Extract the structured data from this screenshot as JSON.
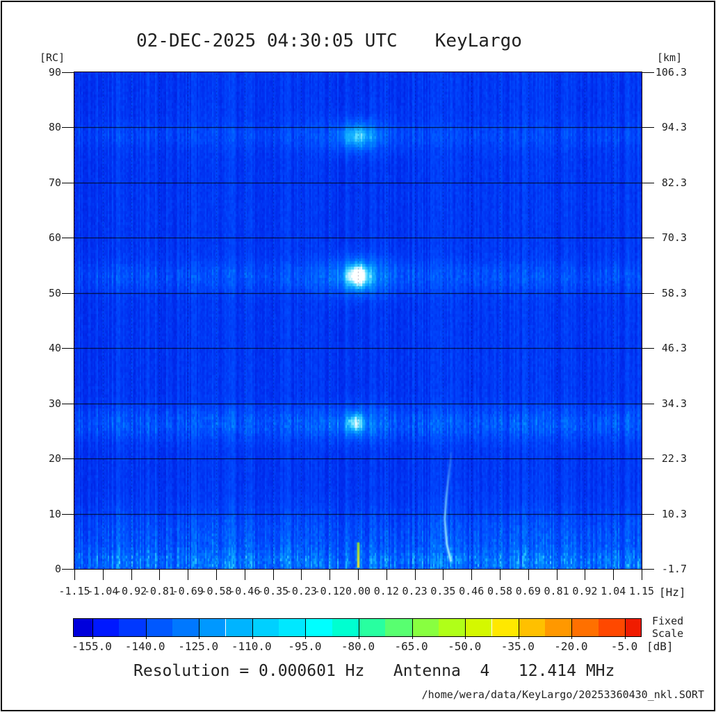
{
  "title": {
    "datetime": "02-DEC-2025 04:30:05 UTC",
    "station": "KeyLargo"
  },
  "axes": {
    "left": {
      "unit": "[RC]",
      "tick_labels": [
        "90",
        "80",
        "70",
        "60",
        "50",
        "40",
        "30",
        "20",
        "10",
        "0"
      ]
    },
    "right": {
      "unit": "[km]",
      "tick_labels": [
        "106.3",
        "94.3",
        "82.3",
        "70.3",
        "58.3",
        "46.3",
        "34.3",
        "22.3",
        "10.3",
        "-1.7"
      ]
    },
    "bottom": {
      "unit": "[Hz]",
      "tick_labels": [
        "-1.15",
        "-1.04",
        "-0.92",
        "-0.81",
        "-0.69",
        "-0.58",
        "-0.46",
        "-0.35",
        "-0.23",
        "-0.12",
        "0.00",
        "0.12",
        "0.23",
        "0.35",
        "0.46",
        "0.58",
        "0.69",
        "0.81",
        "0.92",
        "1.04",
        "1.15"
      ]
    }
  },
  "colorbar": {
    "unit": "[dB]",
    "scale_label": [
      "Fixed",
      "Scale"
    ],
    "tick_labels": [
      "-155.0",
      "-140.0",
      "-125.0",
      "-110.0",
      "-95.0",
      "-80.0",
      "-65.0",
      "-50.0",
      "-35.0",
      "-20.0",
      "-5.0"
    ],
    "segment_colors": [
      "#0000DC",
      "#0018FF",
      "#0038FF",
      "#0058FF",
      "#0078FF",
      "#0098FF",
      "#00B4FF",
      "#00D0FF",
      "#00E8FF",
      "#00FFFF",
      "#00FFD0",
      "#28FFA0",
      "#58FF70",
      "#88FF40",
      "#B0FF18",
      "#D4F800",
      "#FFE800",
      "#FFC000",
      "#FF9800",
      "#FF7000",
      "#FF4800",
      "#F01C00"
    ]
  },
  "footer": {
    "resolution_line": "Resolution = 0.000601 Hz   Antenna  4   12.414 MHz",
    "file_path": "/home/wera/data/KeyLargo/20253360430_nkl.SORT"
  },
  "chart_data": {
    "type": "heatmap",
    "title": "02-DEC-2025 04:30:05 UTC  KeyLargo",
    "xlabel": "[Hz]",
    "ylabel_left": "[RC]",
    "ylabel_right": "[km]",
    "x": {
      "min": -1.15,
      "max": 1.15,
      "ticks": [
        -1.15,
        -1.04,
        -0.92,
        -0.81,
        -0.69,
        -0.58,
        -0.46,
        -0.35,
        -0.23,
        -0.12,
        0.0,
        0.12,
        0.23,
        0.35,
        0.46,
        0.58,
        0.69,
        0.81,
        0.92,
        1.04,
        1.15
      ]
    },
    "y_left_rc": {
      "min": 0,
      "max": 90,
      "ticks": [
        90,
        80,
        70,
        60,
        50,
        40,
        30,
        20,
        10,
        0
      ]
    },
    "y_right_km": {
      "ticks": [
        106.3,
        94.3,
        82.3,
        70.3,
        58.3,
        46.3,
        34.3,
        22.3,
        10.3,
        -1.7
      ]
    },
    "value": {
      "unit": "dB",
      "min": -155.0,
      "max": -5.0,
      "scale": "Fixed Scale"
    },
    "grid": {
      "horizontal_solid_every_rc": 10,
      "vertical_dotted_at_ticks": true
    },
    "background": {
      "description": "low-level blue noise with vertical streaks",
      "base_intensity": 0.1,
      "col_streak_gain": 0.14,
      "cell_noise_gain": 0.08
    },
    "bands": [
      {
        "rc": 78.5,
        "halfwidth": 1.6,
        "amp": 0.1
      },
      {
        "rc": 53.0,
        "halfwidth": 1.9,
        "amp": 0.15
      },
      {
        "rc": 26.3,
        "halfwidth": 2.0,
        "amp": 0.2
      },
      {
        "rc": 5.0,
        "halfwidth": 4.0,
        "amp": 0.18
      },
      {
        "rc": 1.0,
        "halfwidth": 1.6,
        "amp": 0.26
      }
    ],
    "blobs": [
      {
        "hz": 0.0,
        "rc": 78.4,
        "amp": 0.38,
        "sx_hz": 0.045,
        "sy_rc": 1.5
      },
      {
        "hz": 0.0,
        "rc": 78.4,
        "amp": 0.12,
        "sx_hz": 0.12,
        "sy_rc": 2.4
      },
      {
        "hz": 0.0,
        "rc": 53.1,
        "amp": 0.72,
        "sx_hz": 0.034,
        "sy_rc": 1.5
      },
      {
        "hz": 0.0,
        "rc": 53.1,
        "amp": 0.22,
        "sx_hz": 0.11,
        "sy_rc": 2.6
      },
      {
        "hz": -0.01,
        "rc": 26.4,
        "amp": 0.5,
        "sx_hz": 0.022,
        "sy_rc": 1.2
      },
      {
        "hz": -0.01,
        "rc": 26.4,
        "amp": 0.15,
        "sx_hz": 0.09,
        "sy_rc": 2.2
      }
    ],
    "streak_arc": {
      "points_hz_rc": [
        [
          0.378,
          21
        ],
        [
          0.358,
          13
        ],
        [
          0.352,
          9
        ],
        [
          0.36,
          4.5
        ],
        [
          0.376,
          1.5
        ]
      ],
      "color": "#8feef8"
    },
    "zero_hz_line": {
      "hz": 0.0,
      "rc_top": 4.8,
      "rc_bottom": 0.2,
      "color_top": "#7fd83c",
      "color_bottom": "#e8e23a"
    },
    "noise_palette": [
      [
        0,
        "#0014CC"
      ],
      [
        0.16,
        "#002CEE"
      ],
      [
        0.3,
        "#004CFF"
      ],
      [
        0.5,
        "#0080FF"
      ],
      [
        0.66,
        "#14B2FF"
      ],
      [
        0.8,
        "#55DCFF"
      ],
      [
        0.9,
        "#A8EEFF"
      ],
      [
        1,
        "#FFFFFF"
      ]
    ]
  }
}
